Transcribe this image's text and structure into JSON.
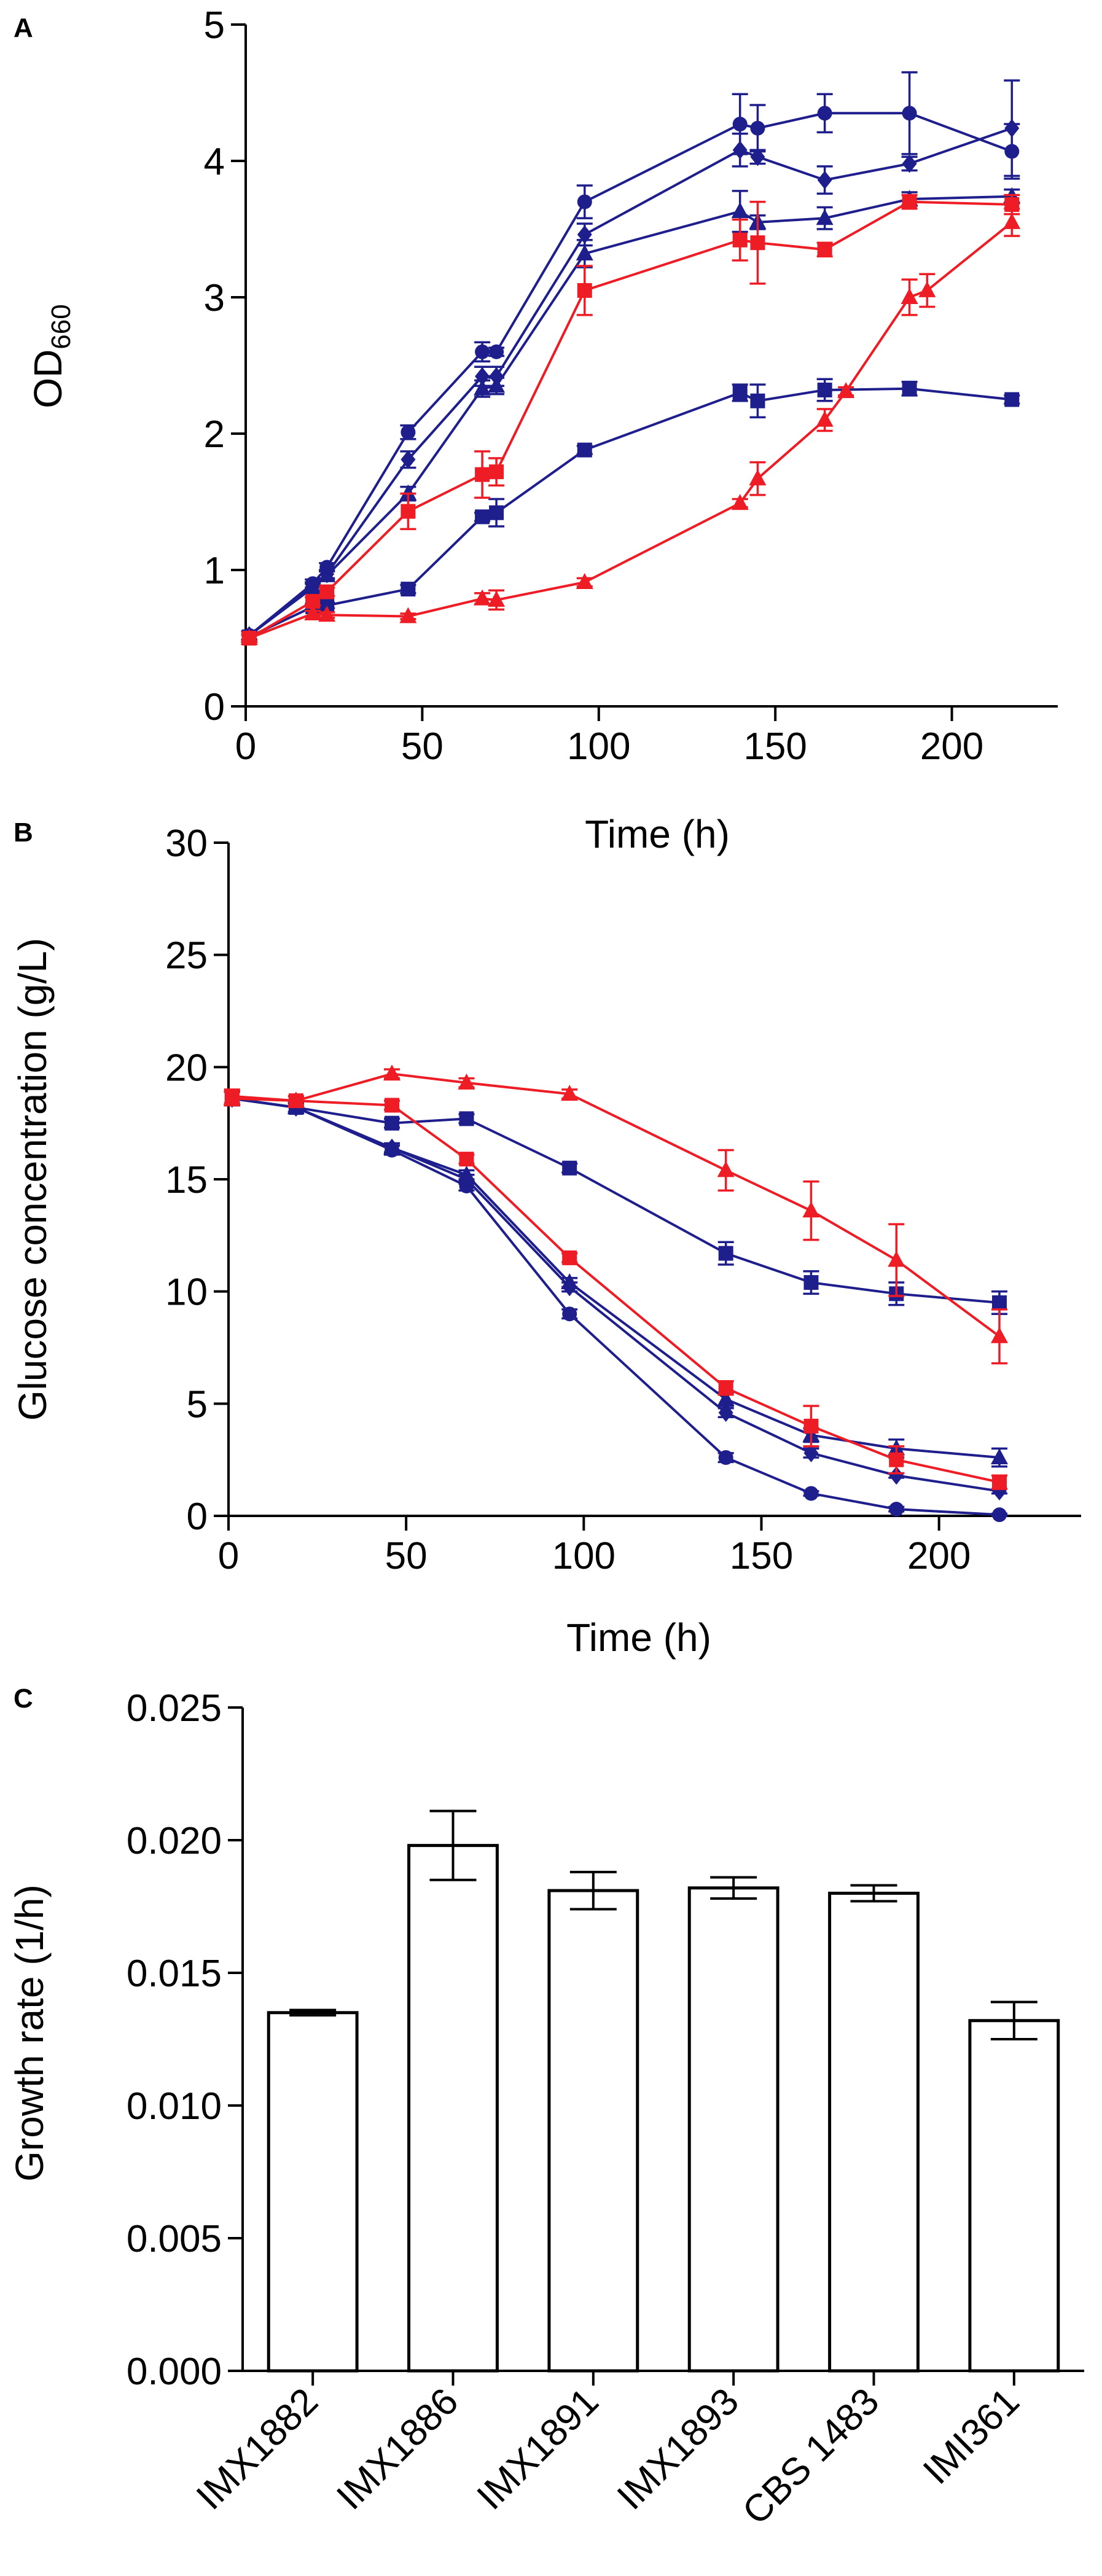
{
  "colors": {
    "blue": "#1e1e8c",
    "red": "#ee1c25",
    "axis": "#000000",
    "bar_fill": "#ffffff"
  },
  "chart_data": [
    {
      "panel": "A",
      "type": "line",
      "xlabel": "Time (h)",
      "ylabel_main": "OD",
      "ylabel_sub": "660",
      "xlim": [
        0,
        230
      ],
      "ylim": [
        0,
        5
      ],
      "xticks": [
        0,
        50,
        100,
        150,
        200
      ],
      "yticks": [
        0,
        1,
        2,
        3,
        4,
        5
      ],
      "series": [
        {
          "name": "blue-circle",
          "color": "blue",
          "marker": "circle",
          "x": [
            1,
            19,
            23,
            46,
            67,
            71,
            96,
            140,
            145,
            164,
            188,
            217
          ],
          "y": [
            0.52,
            0.9,
            1.02,
            2.01,
            2.6,
            2.6,
            3.7,
            4.27,
            4.24,
            4.35,
            4.35,
            4.07
          ],
          "err": [
            0.03,
            0.03,
            0.03,
            0.05,
            0.07,
            0.03,
            0.12,
            0.22,
            0.17,
            0.14,
            0.3,
            0.2
          ]
        },
        {
          "name": "blue-diamond",
          "color": "blue",
          "marker": "diamond",
          "x": [
            1,
            19,
            23,
            46,
            67,
            71,
            96,
            140,
            145,
            164,
            188,
            217
          ],
          "y": [
            0.52,
            0.88,
            0.97,
            1.81,
            2.42,
            2.42,
            3.46,
            4.08,
            4.03,
            3.86,
            3.98,
            4.24
          ],
          "err": [
            0.03,
            0.03,
            0.03,
            0.06,
            0.07,
            0.07,
            0.08,
            0.12,
            0.05,
            0.1,
            0.05,
            0.35
          ]
        },
        {
          "name": "blue-triangle",
          "color": "blue",
          "marker": "triangle",
          "x": [
            1,
            19,
            23,
            46,
            67,
            71,
            96,
            140,
            145,
            164,
            188,
            217
          ],
          "y": [
            0.52,
            0.87,
            0.96,
            1.56,
            2.33,
            2.35,
            3.32,
            3.63,
            3.55,
            3.58,
            3.72,
            3.74
          ],
          "err": [
            0.03,
            0.03,
            0.03,
            0.05,
            0.06,
            0.06,
            0.1,
            0.15,
            0.05,
            0.08,
            0.05,
            0.05
          ]
        },
        {
          "name": "blue-square",
          "color": "blue",
          "marker": "square",
          "x": [
            1,
            19,
            23,
            46,
            67,
            71,
            96,
            140,
            145,
            164,
            188,
            217
          ],
          "y": [
            0.51,
            0.73,
            0.74,
            0.86,
            1.39,
            1.42,
            1.88,
            2.3,
            2.24,
            2.32,
            2.33,
            2.25
          ],
          "err": [
            0.02,
            0.02,
            0.02,
            0.03,
            0.03,
            0.1,
            0.03,
            0.06,
            0.12,
            0.08,
            0.05,
            0.03
          ]
        },
        {
          "name": "red-square",
          "color": "red",
          "marker": "square",
          "x": [
            1,
            19,
            23,
            46,
            67,
            71,
            96,
            140,
            145,
            164,
            188,
            217
          ],
          "y": [
            0.5,
            0.77,
            0.84,
            1.43,
            1.7,
            1.72,
            3.05,
            3.42,
            3.4,
            3.35,
            3.7,
            3.68
          ],
          "err": [
            0.03,
            0.03,
            0.03,
            0.13,
            0.17,
            0.1,
            0.18,
            0.15,
            0.3,
            0.05,
            0.05,
            0.07
          ]
        },
        {
          "name": "red-triangle",
          "color": "red",
          "marker": "triangle",
          "x": [
            1,
            19,
            23,
            46,
            67,
            71,
            96,
            140,
            145,
            164,
            170,
            188,
            193,
            217
          ],
          "y": [
            0.5,
            0.68,
            0.67,
            0.66,
            0.79,
            0.78,
            0.91,
            1.49,
            1.67,
            2.1,
            2.31,
            3.0,
            3.05,
            3.55
          ],
          "err": [
            0.02,
            0.02,
            0.02,
            0.02,
            0.04,
            0.07,
            0.03,
            0.03,
            0.12,
            0.08,
            0.03,
            0.13,
            0.12,
            0.1
          ]
        }
      ]
    },
    {
      "panel": "B",
      "type": "line",
      "xlabel": "Time (h)",
      "ylabel": "Glucose concentration  (g/L)",
      "xlim": [
        0,
        240
      ],
      "ylim": [
        0,
        30
      ],
      "xticks": [
        0,
        50,
        100,
        150,
        200
      ],
      "yticks": [
        0,
        5,
        10,
        15,
        20,
        25,
        30
      ],
      "series": [
        {
          "name": "blue-circle",
          "color": "blue",
          "marker": "circle",
          "x": [
            1,
            19,
            46,
            67,
            96,
            140,
            164,
            188,
            217
          ],
          "y": [
            18.6,
            18.2,
            16.3,
            14.7,
            9.0,
            2.6,
            1.0,
            0.3,
            0.05
          ],
          "err": [
            0.3,
            0.2,
            0.2,
            0.2,
            0.2,
            0.2,
            0.1,
            0.1,
            0.05
          ]
        },
        {
          "name": "blue-diamond",
          "color": "blue",
          "marker": "diamond",
          "x": [
            1,
            19,
            46,
            67,
            96,
            140,
            164,
            188,
            217
          ],
          "y": [
            18.6,
            18.2,
            16.4,
            15.0,
            10.2,
            4.6,
            2.8,
            1.8,
            1.1
          ],
          "err": [
            0.3,
            0.2,
            0.2,
            0.2,
            0.2,
            0.2,
            0.2,
            0.1,
            0.1
          ]
        },
        {
          "name": "blue-triangle",
          "color": "blue",
          "marker": "triangle",
          "x": [
            1,
            19,
            46,
            67,
            96,
            140,
            164,
            188,
            217
          ],
          "y": [
            18.6,
            18.2,
            16.4,
            15.2,
            10.4,
            5.2,
            3.6,
            3.0,
            2.6
          ],
          "err": [
            0.3,
            0.2,
            0.2,
            0.2,
            0.2,
            0.3,
            0.3,
            0.4,
            0.4
          ]
        },
        {
          "name": "blue-square",
          "color": "blue",
          "marker": "square",
          "x": [
            1,
            19,
            46,
            67,
            96,
            140,
            164,
            188,
            217
          ],
          "y": [
            18.6,
            18.2,
            17.5,
            17.7,
            15.5,
            11.7,
            10.4,
            9.9,
            9.5
          ],
          "err": [
            0.3,
            0.2,
            0.2,
            0.2,
            0.2,
            0.5,
            0.5,
            0.5,
            0.5
          ]
        },
        {
          "name": "red-square",
          "color": "red",
          "marker": "square",
          "x": [
            1,
            19,
            46,
            67,
            96,
            140,
            164,
            188,
            217
          ],
          "y": [
            18.7,
            18.5,
            18.3,
            15.9,
            11.5,
            5.7,
            4.0,
            2.5,
            1.5
          ],
          "err": [
            0.3,
            0.2,
            0.2,
            0.2,
            0.2,
            0.3,
            0.9,
            0.6,
            0.3
          ]
        },
        {
          "name": "red-triangle",
          "color": "red",
          "marker": "triangle",
          "x": [
            1,
            19,
            46,
            67,
            96,
            140,
            164,
            188,
            217
          ],
          "y": [
            18.6,
            18.5,
            19.7,
            19.3,
            18.8,
            15.4,
            13.6,
            11.4,
            8.0
          ],
          "err": [
            0.3,
            0.2,
            0.2,
            0.2,
            0.2,
            0.9,
            1.3,
            1.6,
            1.2
          ]
        }
      ]
    },
    {
      "panel": "C",
      "type": "bar",
      "xlabel": "",
      "ylabel": "Growth rate  (1/h)",
      "ylim": [
        0,
        0.025
      ],
      "yticks": [
        "0.000",
        "0.005",
        "0.010",
        "0.015",
        "0.020",
        "0.025"
      ],
      "categories": [
        "IMX1882",
        "IMX1886",
        "IMX1891",
        "IMX1893",
        "CBS 1483",
        "IMI361"
      ],
      "values": [
        0.0135,
        0.0198,
        0.0181,
        0.0182,
        0.018,
        0.0132
      ],
      "err": [
        0.0001,
        0.0013,
        0.0007,
        0.0004,
        0.0003,
        0.0007
      ]
    }
  ]
}
